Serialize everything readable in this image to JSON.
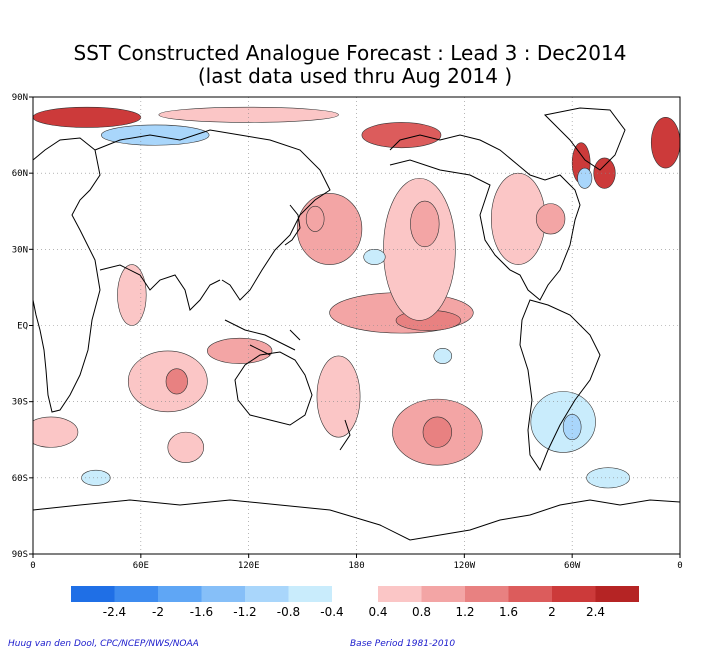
{
  "chart_data": {
    "type": "heatmap",
    "title": "SST Constructed Analogue Forecast : Lead 3 : Dec2014",
    "subtitle": "(last data used thru Aug 2014 )",
    "x_ticks": [
      "0",
      "60E",
      "120E",
      "180",
      "120W",
      "60W",
      "0"
    ],
    "y_ticks": [
      "90N",
      "60N",
      "30N",
      "EQ",
      "30S",
      "60S",
      "90S"
    ],
    "xlim": [
      0,
      360
    ],
    "ylim": [
      -90,
      90
    ],
    "grid": true,
    "colorbar": {
      "neg_labels": [
        "-2.4",
        "-2",
        "-1.6",
        "-1.2",
        "-0.8",
        "-0.4"
      ],
      "pos_labels": [
        "0.4",
        "0.8",
        "1.2",
        "1.6",
        "2",
        "2.4"
      ],
      "neg_colors": [
        "#1f6fe6",
        "#3d8bef",
        "#5fa6f5",
        "#86bff8",
        "#a9d6fb",
        "#c9ecfc"
      ],
      "pos_colors": [
        "#fbc6c6",
        "#f3a5a5",
        "#e88181",
        "#dc5c5c",
        "#cc3a3a",
        "#b52424"
      ]
    },
    "anomalies": [
      {
        "lon": 205,
        "lat": 5,
        "rlon": 40,
        "rlat": 8,
        "value": 1.1
      },
      {
        "lon": 220,
        "lat": 2,
        "rlon": 18,
        "rlat": 4,
        "value": 1.3
      },
      {
        "lon": 215,
        "lat": 30,
        "rlon": 20,
        "rlat": 28,
        "value": 0.7
      },
      {
        "lon": 218,
        "lat": 40,
        "rlon": 8,
        "rlat": 9,
        "value": 1.0
      },
      {
        "lon": 165,
        "lat": 38,
        "rlon": 18,
        "rlat": 14,
        "value": 0.8
      },
      {
        "lon": 157,
        "lat": 42,
        "rlon": 5,
        "rlat": 5,
        "value": 1.2
      },
      {
        "lon": 225,
        "lat": -42,
        "rlon": 25,
        "rlat": 13,
        "value": 0.9
      },
      {
        "lon": 225,
        "lat": -42,
        "rlon": 8,
        "rlat": 6,
        "value": 1.3
      },
      {
        "lon": 270,
        "lat": 42,
        "rlon": 15,
        "rlat": 18,
        "value": 0.7
      },
      {
        "lon": 288,
        "lat": 42,
        "rlon": 8,
        "rlat": 6,
        "value": 1.0
      },
      {
        "lon": 75,
        "lat": -22,
        "rlon": 22,
        "rlat": 12,
        "value": 0.7
      },
      {
        "lon": 80,
        "lat": -22,
        "rlon": 6,
        "rlat": 5,
        "value": 1.3
      },
      {
        "lon": 115,
        "lat": -10,
        "rlon": 18,
        "rlat": 5,
        "value": 0.8
      },
      {
        "lon": 170,
        "lat": -28,
        "rlon": 12,
        "rlat": 16,
        "value": 0.6
      },
      {
        "lon": 55,
        "lat": 12,
        "rlon": 8,
        "rlat": 12,
        "value": 0.5
      },
      {
        "lon": 10,
        "lat": -42,
        "rlon": 15,
        "rlat": 6,
        "value": 0.6
      },
      {
        "lon": 85,
        "lat": -48,
        "rlon": 10,
        "rlat": 6,
        "value": 0.5
      },
      {
        "lon": 30,
        "lat": 82,
        "rlon": 30,
        "rlat": 4,
        "value": 2.2
      },
      {
        "lon": 120,
        "lat": 83,
        "rlon": 50,
        "rlat": 3,
        "value": 0.6
      },
      {
        "lon": 205,
        "lat": 75,
        "rlon": 22,
        "rlat": 5,
        "value": 1.6
      },
      {
        "lon": 305,
        "lat": 64,
        "rlon": 5,
        "rlat": 8,
        "value": 2.4
      },
      {
        "lon": 352,
        "lat": 72,
        "rlon": 8,
        "rlat": 10,
        "value": 2.4
      },
      {
        "lon": 318,
        "lat": 60,
        "rlon": 6,
        "rlat": 6,
        "value": 2.0
      },
      {
        "lon": 68,
        "lat": 75,
        "rlon": 30,
        "rlat": 4,
        "value": -0.9
      },
      {
        "lon": 295,
        "lat": -38,
        "rlon": 18,
        "rlat": 12,
        "value": -0.5
      },
      {
        "lon": 300,
        "lat": -40,
        "rlon": 5,
        "rlat": 5,
        "value": -0.9
      },
      {
        "lon": 190,
        "lat": 27,
        "rlon": 6,
        "rlat": 3,
        "value": -0.6
      },
      {
        "lon": 307,
        "lat": 58,
        "rlon": 4,
        "rlat": 4,
        "value": -1.2
      },
      {
        "lon": 35,
        "lat": -60,
        "rlon": 8,
        "rlat": 3,
        "value": -0.5
      },
      {
        "lon": 228,
        "lat": -12,
        "rlon": 5,
        "rlat": 3,
        "value": -0.5
      },
      {
        "lon": 320,
        "lat": -60,
        "rlon": 12,
        "rlat": 4,
        "value": -0.5
      }
    ]
  },
  "credit_left": "Huug van den Dool, CPC/NCEP/NWS/NOAA",
  "credit_right": "Base Period 1981-2010"
}
